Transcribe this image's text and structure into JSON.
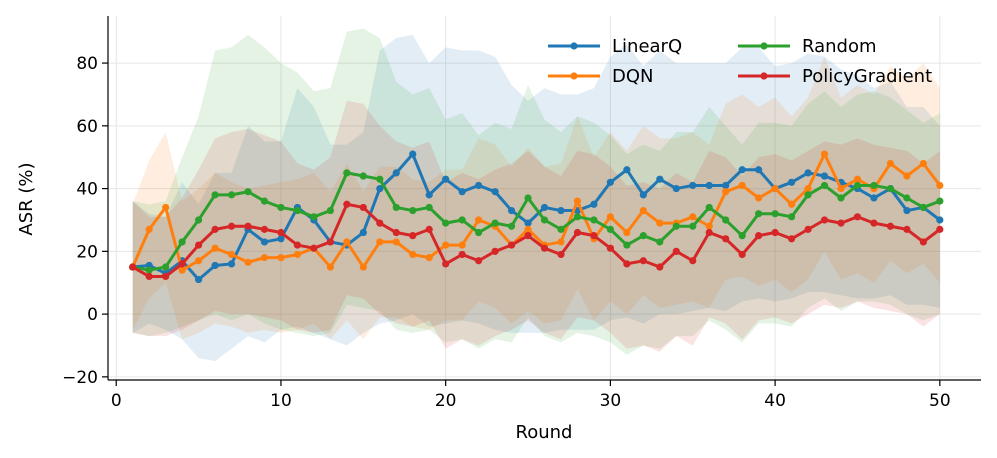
{
  "chart_data": {
    "type": "line",
    "title": "",
    "xlabel": "Round",
    "ylabel": "ASR (%)",
    "xlim": [
      -0.5,
      52.5
    ],
    "ylim": [
      -21,
      95
    ],
    "xticks": [
      0,
      10,
      20,
      30,
      40,
      50
    ],
    "yticks": [
      -20,
      0,
      20,
      40,
      60,
      80
    ],
    "grid": true,
    "legend": {
      "location": "top-right",
      "columns": 2
    },
    "x": [
      1,
      2,
      3,
      4,
      5,
      6,
      7,
      8,
      9,
      10,
      11,
      12,
      13,
      14,
      15,
      16,
      17,
      18,
      19,
      20,
      21,
      22,
      23,
      24,
      25,
      26,
      27,
      28,
      29,
      30,
      31,
      32,
      33,
      34,
      35,
      36,
      37,
      38,
      39,
      40,
      41,
      42,
      43,
      44,
      45,
      46,
      47,
      48,
      49,
      50
    ],
    "series": [
      {
        "name": "LinearQ",
        "color": "#1f77b4",
        "values": [
          15,
          15.5,
          13,
          17,
          11,
          15.5,
          16,
          27,
          23,
          24,
          34,
          30,
          23,
          22,
          26,
          40,
          45,
          51,
          38,
          43,
          39,
          41,
          39,
          33,
          29,
          34,
          33,
          33,
          35,
          42,
          46,
          38,
          43,
          40,
          41,
          41,
          41,
          46,
          46,
          40,
          42,
          45,
          44,
          42,
          40,
          37,
          40,
          33,
          34,
          30
        ],
        "band_low": [
          -6,
          -3,
          -5,
          -8,
          -14,
          -15,
          -11,
          -7,
          -9,
          -5,
          -4,
          -6,
          -8,
          -10,
          -6,
          -3,
          -2,
          0,
          -4,
          -3,
          -2,
          -3,
          -5,
          -6,
          -6,
          -6,
          -5,
          -5,
          -5,
          -2,
          -1,
          -3,
          0,
          0,
          1,
          2,
          1,
          4,
          5,
          4,
          5,
          7,
          7,
          6,
          5,
          5,
          6,
          3,
          3,
          2
        ],
        "band_high": [
          36,
          32,
          31,
          42,
          35,
          45,
          45,
          60,
          55,
          55,
          72,
          66,
          54,
          54,
          58,
          84,
          88,
          89,
          80,
          85,
          84,
          84,
          82,
          73,
          68,
          72,
          70,
          70,
          72,
          82,
          86,
          79,
          84,
          80,
          80,
          80,
          80,
          85,
          85,
          79,
          80,
          83,
          82,
          78,
          76,
          72,
          74,
          66,
          66,
          60
        ]
      },
      {
        "name": "DQN",
        "color": "#ff7f0e",
        "values": [
          15,
          27,
          34,
          14,
          17,
          21,
          19,
          16.5,
          18,
          18,
          19,
          21,
          15,
          23,
          15,
          23,
          23,
          19,
          18,
          22,
          22,
          30,
          28,
          22,
          27,
          22,
          23,
          36,
          24,
          31,
          26,
          33,
          29,
          29,
          31,
          28,
          39,
          41,
          37,
          40,
          35,
          40,
          51,
          40,
          43,
          40,
          48,
          44,
          48,
          41
        ],
        "band_low": [
          -5,
          5,
          10,
          -8,
          -6,
          -3,
          -4,
          -6,
          -5,
          -6,
          -5,
          -3,
          -8,
          -2,
          -8,
          -1,
          -1,
          -4,
          -5,
          -2,
          -2,
          4,
          2,
          -3,
          1,
          -3,
          -2,
          8,
          -2,
          4,
          0,
          6,
          2,
          3,
          4,
          2,
          11,
          12,
          9,
          11,
          7,
          11,
          20,
          11,
          13,
          10,
          17,
          13,
          16,
          10
        ],
        "band_high": [
          35,
          49,
          58,
          36,
          40,
          45,
          42,
          40,
          41,
          42,
          43,
          45,
          39,
          48,
          39,
          47,
          47,
          43,
          42,
          46,
          46,
          56,
          54,
          47,
          53,
          47,
          48,
          63,
          50,
          58,
          52,
          60,
          56,
          56,
          58,
          54,
          67,
          70,
          66,
          69,
          63,
          69,
          82,
          69,
          73,
          70,
          79,
          75,
          80,
          72
        ]
      },
      {
        "name": "Random",
        "color": "#2ca02c",
        "values": [
          15,
          14,
          15,
          23,
          30,
          38,
          38,
          39,
          36,
          34,
          33,
          31,
          33,
          45,
          44,
          43,
          34,
          33,
          34,
          29,
          30,
          26,
          29,
          28,
          37,
          30,
          27,
          31,
          30,
          27,
          22,
          25,
          23,
          28,
          28,
          34,
          30,
          25,
          32,
          32,
          31,
          38,
          41,
          37,
          41,
          41,
          40,
          37,
          34,
          36
        ],
        "band_low": [
          -6,
          -7,
          -6,
          -4,
          -2,
          0,
          -2,
          0,
          -3,
          -5,
          -6,
          -7,
          -6,
          3,
          2,
          1,
          -5,
          -6,
          -5,
          -9,
          -8,
          -11,
          -8,
          -9,
          -1,
          -7,
          -9,
          -6,
          -7,
          -9,
          -13,
          -10,
          -11,
          -7,
          -7,
          -2,
          -5,
          -9,
          -3,
          -3,
          -4,
          2,
          5,
          1,
          4,
          4,
          3,
          0,
          -2,
          0
        ],
        "band_high": [
          36,
          35,
          36,
          50,
          63,
          84,
          85,
          89,
          85,
          80,
          77,
          71,
          72,
          90,
          91,
          88,
          74,
          70,
          72,
          62,
          64,
          57,
          61,
          59,
          73,
          62,
          58,
          63,
          61,
          57,
          51,
          54,
          52,
          58,
          58,
          66,
          60,
          54,
          61,
          61,
          60,
          67,
          71,
          66,
          70,
          71,
          69,
          65,
          61,
          64
        ]
      },
      {
        "name": "PolicyGradient",
        "color": "#d62728",
        "values": [
          15,
          12,
          12,
          16,
          22,
          27,
          28,
          28,
          27,
          26,
          22,
          21,
          23,
          35,
          34,
          29,
          26,
          25,
          27,
          16,
          19,
          17,
          20,
          22,
          25,
          21,
          19,
          26,
          25,
          21,
          16,
          17,
          15,
          20,
          17,
          26,
          24,
          19,
          25,
          26,
          24,
          27,
          30,
          29,
          31,
          29,
          28,
          27,
          23,
          27
        ],
        "band_low": [
          -6,
          -7,
          -7,
          -5,
          -2,
          1,
          0,
          0,
          -1,
          -2,
          -5,
          -6,
          -5,
          6,
          5,
          0,
          -3,
          -4,
          -2,
          -11,
          -8,
          -10,
          -7,
          -5,
          -2,
          -6,
          -8,
          -1,
          -2,
          -6,
          -11,
          -10,
          -12,
          -7,
          -10,
          -1,
          -3,
          -8,
          -2,
          -1,
          -3,
          0,
          3,
          2,
          4,
          2,
          1,
          0,
          -4,
          0
        ],
        "band_high": [
          36,
          31,
          31,
          37,
          46,
          56,
          58,
          59,
          57,
          55,
          48,
          46,
          50,
          68,
          67,
          60,
          55,
          53,
          55,
          42,
          45,
          43,
          46,
          48,
          52,
          47,
          44,
          52,
          51,
          47,
          41,
          42,
          40,
          45,
          42,
          52,
          50,
          44,
          50,
          51,
          49,
          52,
          55,
          54,
          56,
          54,
          53,
          52,
          48,
          52
        ]
      }
    ]
  }
}
